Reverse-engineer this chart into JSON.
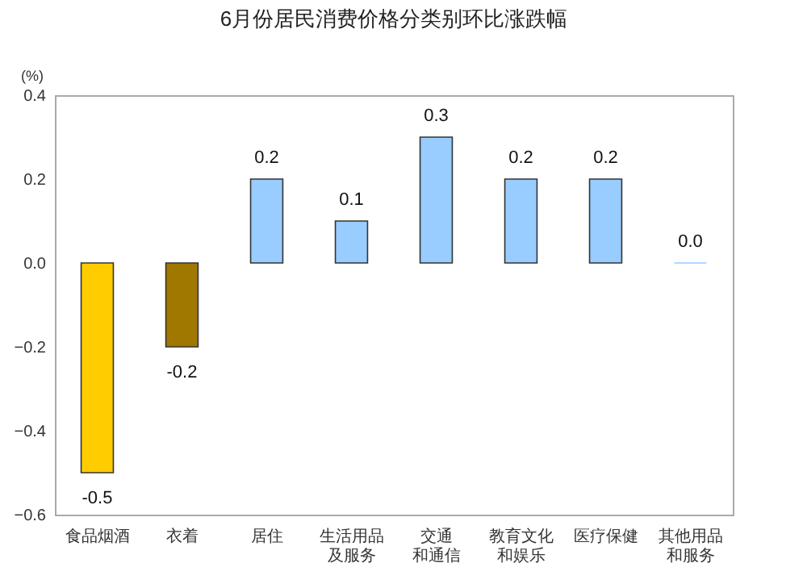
{
  "chart_data": {
    "type": "bar",
    "title": "6月份居民消费价格分类别环比涨跌幅",
    "ylabel": "(%)",
    "categories": [
      "食品烟酒",
      "衣着",
      "居住",
      "生活用品及服务",
      "交通和通信",
      "教育文化和娱乐",
      "医疗保健",
      "其他用品和服务"
    ],
    "values": [
      -0.5,
      -0.2,
      0.2,
      0.1,
      0.3,
      0.2,
      0.2,
      0.0
    ],
    "colors": [
      "#ffcc00",
      "#a07800",
      "#99ccff",
      "#99ccff",
      "#99ccff",
      "#99ccff",
      "#99ccff",
      "#99ccff"
    ],
    "ylim": [
      -0.6,
      0.4
    ],
    "yticks": [
      -0.6,
      -0.4,
      -0.2,
      {
        "value": 0,
        "label": "0.0"
      },
      0.2,
      0.4
    ],
    "value_labels": [
      "-0.5",
      "-0.2",
      "0.2",
      "0.1",
      "0.3",
      "0.2",
      "0.2",
      "0.0"
    ]
  }
}
